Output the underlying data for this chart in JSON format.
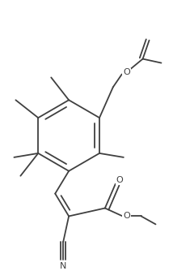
{
  "bg_color": "#ffffff",
  "line_color": "#404040",
  "line_width": 1.3,
  "figsize": [
    2.14,
    3.34
  ],
  "dpi": 100,
  "xlim": [
    0,
    214
  ],
  "ylim": [
    0,
    334
  ]
}
